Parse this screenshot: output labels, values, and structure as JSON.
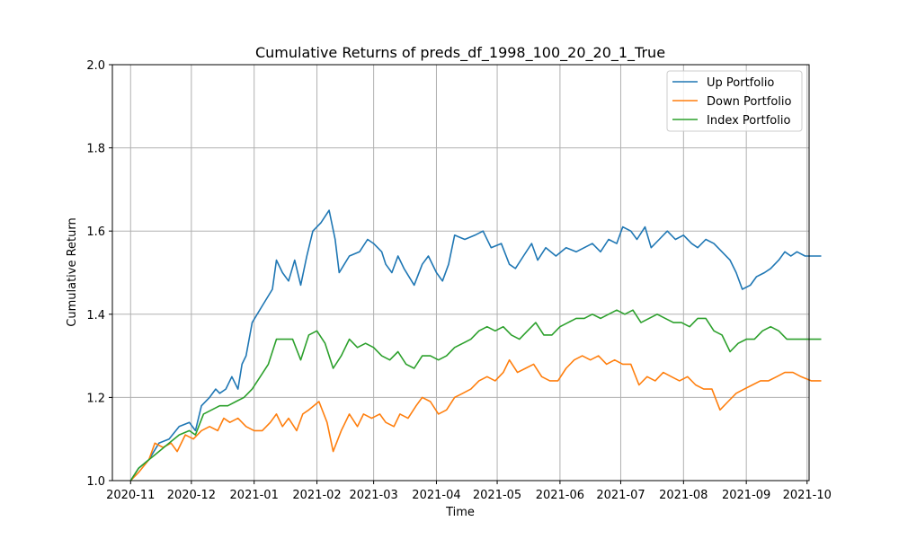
{
  "chart_data": {
    "type": "line",
    "title": "Cumulative Returns of preds_df_1998_100_20_20_1_True",
    "xlabel": "Time",
    "ylabel": "Cumulative Return",
    "ylim": [
      1.0,
      2.0
    ],
    "yticks": [
      "1.0",
      "1.2",
      "1.4",
      "1.6",
      "1.8",
      "2.0"
    ],
    "xlim": [
      "2020-10-23",
      "2021-10-02"
    ],
    "xticks": [
      "2020-11",
      "2020-12",
      "2021-01",
      "2021-02",
      "2021-03",
      "2021-04",
      "2021-05",
      "2021-06",
      "2021-07",
      "2021-08",
      "2021-09",
      "2021-10"
    ],
    "grid": true,
    "legend": "top-right",
    "series": [
      {
        "name": "Up Portfolio",
        "color": "#1f77b4",
        "points": [
          [
            "2020-11-01",
            1.0
          ],
          [
            "2020-11-05",
            1.03
          ],
          [
            "2020-11-10",
            1.05
          ],
          [
            "2020-11-15",
            1.09
          ],
          [
            "2020-11-20",
            1.1
          ],
          [
            "2020-11-25",
            1.13
          ],
          [
            "2020-11-30",
            1.14
          ],
          [
            "2020-12-03",
            1.12
          ],
          [
            "2020-12-06",
            1.18
          ],
          [
            "2020-12-10",
            1.2
          ],
          [
            "2020-12-13",
            1.22
          ],
          [
            "2020-12-15",
            1.21
          ],
          [
            "2020-12-18",
            1.22
          ],
          [
            "2020-12-21",
            1.25
          ],
          [
            "2020-12-24",
            1.22
          ],
          [
            "2020-12-26",
            1.28
          ],
          [
            "2020-12-28",
            1.3
          ],
          [
            "2020-12-31",
            1.38
          ],
          [
            "2021-01-05",
            1.42
          ],
          [
            "2021-01-10",
            1.46
          ],
          [
            "2021-01-12",
            1.53
          ],
          [
            "2021-01-15",
            1.5
          ],
          [
            "2021-01-18",
            1.48
          ],
          [
            "2021-01-21",
            1.53
          ],
          [
            "2021-01-24",
            1.47
          ],
          [
            "2021-01-27",
            1.54
          ],
          [
            "2021-01-30",
            1.6
          ],
          [
            "2021-02-03",
            1.62
          ],
          [
            "2021-02-07",
            1.65
          ],
          [
            "2021-02-10",
            1.58
          ],
          [
            "2021-02-12",
            1.5
          ],
          [
            "2021-02-17",
            1.54
          ],
          [
            "2021-02-22",
            1.55
          ],
          [
            "2021-02-26",
            1.58
          ],
          [
            "2021-03-01",
            1.57
          ],
          [
            "2021-03-05",
            1.55
          ],
          [
            "2021-03-07",
            1.52
          ],
          [
            "2021-03-10",
            1.5
          ],
          [
            "2021-03-13",
            1.54
          ],
          [
            "2021-03-16",
            1.51
          ],
          [
            "2021-03-21",
            1.47
          ],
          [
            "2021-03-25",
            1.52
          ],
          [
            "2021-03-28",
            1.54
          ],
          [
            "2021-04-01",
            1.5
          ],
          [
            "2021-04-04",
            1.48
          ],
          [
            "2021-04-07",
            1.52
          ],
          [
            "2021-04-10",
            1.59
          ],
          [
            "2021-04-15",
            1.58
          ],
          [
            "2021-04-20",
            1.59
          ],
          [
            "2021-04-24",
            1.6
          ],
          [
            "2021-04-28",
            1.56
          ],
          [
            "2021-05-03",
            1.57
          ],
          [
            "2021-05-07",
            1.52
          ],
          [
            "2021-05-10",
            1.51
          ],
          [
            "2021-05-14",
            1.54
          ],
          [
            "2021-05-18",
            1.57
          ],
          [
            "2021-05-21",
            1.53
          ],
          [
            "2021-05-25",
            1.56
          ],
          [
            "2021-05-30",
            1.54
          ],
          [
            "2021-06-04",
            1.56
          ],
          [
            "2021-06-09",
            1.55
          ],
          [
            "2021-06-13",
            1.56
          ],
          [
            "2021-06-17",
            1.57
          ],
          [
            "2021-06-21",
            1.55
          ],
          [
            "2021-06-25",
            1.58
          ],
          [
            "2021-06-29",
            1.57
          ],
          [
            "2021-07-02",
            1.61
          ],
          [
            "2021-07-06",
            1.6
          ],
          [
            "2021-07-09",
            1.58
          ],
          [
            "2021-07-13",
            1.61
          ],
          [
            "2021-07-16",
            1.56
          ],
          [
            "2021-07-20",
            1.58
          ],
          [
            "2021-07-24",
            1.6
          ],
          [
            "2021-07-28",
            1.58
          ],
          [
            "2021-08-01",
            1.59
          ],
          [
            "2021-08-05",
            1.57
          ],
          [
            "2021-08-08",
            1.56
          ],
          [
            "2021-08-12",
            1.58
          ],
          [
            "2021-08-16",
            1.57
          ],
          [
            "2021-08-20",
            1.55
          ],
          [
            "2021-08-24",
            1.53
          ],
          [
            "2021-08-27",
            1.5
          ],
          [
            "2021-08-30",
            1.46
          ],
          [
            "2021-09-03",
            1.47
          ],
          [
            "2021-09-06",
            1.49
          ],
          [
            "2021-09-10",
            1.5
          ],
          [
            "2021-09-13",
            1.51
          ],
          [
            "2021-09-17",
            1.53
          ],
          [
            "2021-09-20",
            1.55
          ],
          [
            "2021-09-23",
            1.54
          ],
          [
            "2021-09-26",
            1.55
          ],
          [
            "2021-09-30",
            1.54
          ],
          [
            "2021-10-03",
            1.54
          ],
          [
            "2021-10-08",
            1.54
          ]
        ]
      },
      {
        "name": "Down Portfolio",
        "color": "#ff7f0e",
        "points": [
          [
            "2020-11-01",
            1.0
          ],
          [
            "2020-11-05",
            1.02
          ],
          [
            "2020-11-10",
            1.05
          ],
          [
            "2020-11-13",
            1.09
          ],
          [
            "2020-11-17",
            1.08
          ],
          [
            "2020-11-21",
            1.09
          ],
          [
            "2020-11-24",
            1.07
          ],
          [
            "2020-11-28",
            1.11
          ],
          [
            "2020-12-02",
            1.1
          ],
          [
            "2020-12-06",
            1.12
          ],
          [
            "2020-12-10",
            1.13
          ],
          [
            "2020-12-14",
            1.12
          ],
          [
            "2020-12-17",
            1.15
          ],
          [
            "2020-12-20",
            1.14
          ],
          [
            "2020-12-24",
            1.15
          ],
          [
            "2020-12-28",
            1.13
          ],
          [
            "2021-01-01",
            1.12
          ],
          [
            "2021-01-05",
            1.12
          ],
          [
            "2021-01-09",
            1.14
          ],
          [
            "2021-01-12",
            1.16
          ],
          [
            "2021-01-15",
            1.13
          ],
          [
            "2021-01-18",
            1.15
          ],
          [
            "2021-01-22",
            1.12
          ],
          [
            "2021-01-25",
            1.16
          ],
          [
            "2021-01-28",
            1.17
          ],
          [
            "2021-02-02",
            1.19
          ],
          [
            "2021-02-06",
            1.14
          ],
          [
            "2021-02-09",
            1.07
          ],
          [
            "2021-02-13",
            1.12
          ],
          [
            "2021-02-17",
            1.16
          ],
          [
            "2021-02-21",
            1.13
          ],
          [
            "2021-02-24",
            1.16
          ],
          [
            "2021-02-28",
            1.15
          ],
          [
            "2021-03-04",
            1.16
          ],
          [
            "2021-03-07",
            1.14
          ],
          [
            "2021-03-11",
            1.13
          ],
          [
            "2021-03-14",
            1.16
          ],
          [
            "2021-03-18",
            1.15
          ],
          [
            "2021-03-22",
            1.18
          ],
          [
            "2021-03-25",
            1.2
          ],
          [
            "2021-03-29",
            1.19
          ],
          [
            "2021-04-02",
            1.16
          ],
          [
            "2021-04-06",
            1.17
          ],
          [
            "2021-04-10",
            1.2
          ],
          [
            "2021-04-14",
            1.21
          ],
          [
            "2021-04-18",
            1.22
          ],
          [
            "2021-04-22",
            1.24
          ],
          [
            "2021-04-26",
            1.25
          ],
          [
            "2021-04-30",
            1.24
          ],
          [
            "2021-05-04",
            1.26
          ],
          [
            "2021-05-07",
            1.29
          ],
          [
            "2021-05-11",
            1.26
          ],
          [
            "2021-05-15",
            1.27
          ],
          [
            "2021-05-19",
            1.28
          ],
          [
            "2021-05-23",
            1.25
          ],
          [
            "2021-05-27",
            1.24
          ],
          [
            "2021-05-31",
            1.24
          ],
          [
            "2021-06-04",
            1.27
          ],
          [
            "2021-06-08",
            1.29
          ],
          [
            "2021-06-12",
            1.3
          ],
          [
            "2021-06-16",
            1.29
          ],
          [
            "2021-06-20",
            1.3
          ],
          [
            "2021-06-24",
            1.28
          ],
          [
            "2021-06-28",
            1.29
          ],
          [
            "2021-07-02",
            1.28
          ],
          [
            "2021-07-06",
            1.28
          ],
          [
            "2021-07-10",
            1.23
          ],
          [
            "2021-07-14",
            1.25
          ],
          [
            "2021-07-18",
            1.24
          ],
          [
            "2021-07-22",
            1.26
          ],
          [
            "2021-07-26",
            1.25
          ],
          [
            "2021-07-30",
            1.24
          ],
          [
            "2021-08-03",
            1.25
          ],
          [
            "2021-08-07",
            1.23
          ],
          [
            "2021-08-11",
            1.22
          ],
          [
            "2021-08-15",
            1.22
          ],
          [
            "2021-08-19",
            1.17
          ],
          [
            "2021-08-23",
            1.19
          ],
          [
            "2021-08-27",
            1.21
          ],
          [
            "2021-08-31",
            1.22
          ],
          [
            "2021-09-04",
            1.23
          ],
          [
            "2021-09-08",
            1.24
          ],
          [
            "2021-09-12",
            1.24
          ],
          [
            "2021-09-16",
            1.25
          ],
          [
            "2021-09-20",
            1.26
          ],
          [
            "2021-09-24",
            1.26
          ],
          [
            "2021-09-28",
            1.25
          ],
          [
            "2021-10-03",
            1.24
          ],
          [
            "2021-10-08",
            1.24
          ]
        ]
      },
      {
        "name": "Index Portfolio",
        "color": "#2ca02c",
        "points": [
          [
            "2020-11-01",
            1.0
          ],
          [
            "2020-11-05",
            1.03
          ],
          [
            "2020-11-10",
            1.05
          ],
          [
            "2020-11-15",
            1.07
          ],
          [
            "2020-11-20",
            1.09
          ],
          [
            "2020-11-25",
            1.11
          ],
          [
            "2020-11-30",
            1.12
          ],
          [
            "2020-12-03",
            1.11
          ],
          [
            "2020-12-07",
            1.16
          ],
          [
            "2020-12-11",
            1.17
          ],
          [
            "2020-12-15",
            1.18
          ],
          [
            "2020-12-19",
            1.18
          ],
          [
            "2020-12-23",
            1.19
          ],
          [
            "2020-12-27",
            1.2
          ],
          [
            "2020-12-31",
            1.22
          ],
          [
            "2021-01-04",
            1.25
          ],
          [
            "2021-01-08",
            1.28
          ],
          [
            "2021-01-12",
            1.34
          ],
          [
            "2021-01-16",
            1.34
          ],
          [
            "2021-01-20",
            1.34
          ],
          [
            "2021-01-24",
            1.29
          ],
          [
            "2021-01-28",
            1.35
          ],
          [
            "2021-02-01",
            1.36
          ],
          [
            "2021-02-05",
            1.33
          ],
          [
            "2021-02-09",
            1.27
          ],
          [
            "2021-02-13",
            1.3
          ],
          [
            "2021-02-17",
            1.34
          ],
          [
            "2021-02-21",
            1.32
          ],
          [
            "2021-02-25",
            1.33
          ],
          [
            "2021-03-01",
            1.32
          ],
          [
            "2021-03-05",
            1.3
          ],
          [
            "2021-03-09",
            1.29
          ],
          [
            "2021-03-13",
            1.31
          ],
          [
            "2021-03-17",
            1.28
          ],
          [
            "2021-03-21",
            1.27
          ],
          [
            "2021-03-25",
            1.3
          ],
          [
            "2021-03-29",
            1.3
          ],
          [
            "2021-04-02",
            1.29
          ],
          [
            "2021-04-06",
            1.3
          ],
          [
            "2021-04-10",
            1.32
          ],
          [
            "2021-04-14",
            1.33
          ],
          [
            "2021-04-18",
            1.34
          ],
          [
            "2021-04-22",
            1.36
          ],
          [
            "2021-04-26",
            1.37
          ],
          [
            "2021-04-30",
            1.36
          ],
          [
            "2021-05-04",
            1.37
          ],
          [
            "2021-05-08",
            1.35
          ],
          [
            "2021-05-12",
            1.34
          ],
          [
            "2021-05-16",
            1.36
          ],
          [
            "2021-05-20",
            1.38
          ],
          [
            "2021-05-24",
            1.35
          ],
          [
            "2021-05-28",
            1.35
          ],
          [
            "2021-06-01",
            1.37
          ],
          [
            "2021-06-05",
            1.38
          ],
          [
            "2021-06-09",
            1.39
          ],
          [
            "2021-06-13",
            1.39
          ],
          [
            "2021-06-17",
            1.4
          ],
          [
            "2021-06-21",
            1.39
          ],
          [
            "2021-06-25",
            1.4
          ],
          [
            "2021-06-29",
            1.41
          ],
          [
            "2021-07-03",
            1.4
          ],
          [
            "2021-07-07",
            1.41
          ],
          [
            "2021-07-11",
            1.38
          ],
          [
            "2021-07-15",
            1.39
          ],
          [
            "2021-07-19",
            1.4
          ],
          [
            "2021-07-23",
            1.39
          ],
          [
            "2021-07-27",
            1.38
          ],
          [
            "2021-07-31",
            1.38
          ],
          [
            "2021-08-04",
            1.37
          ],
          [
            "2021-08-08",
            1.39
          ],
          [
            "2021-08-12",
            1.39
          ],
          [
            "2021-08-16",
            1.36
          ],
          [
            "2021-08-20",
            1.35
          ],
          [
            "2021-08-24",
            1.31
          ],
          [
            "2021-08-28",
            1.33
          ],
          [
            "2021-09-01",
            1.34
          ],
          [
            "2021-09-05",
            1.34
          ],
          [
            "2021-09-09",
            1.36
          ],
          [
            "2021-09-13",
            1.37
          ],
          [
            "2021-09-17",
            1.36
          ],
          [
            "2021-09-21",
            1.34
          ],
          [
            "2021-09-25",
            1.34
          ],
          [
            "2021-09-29",
            1.34
          ],
          [
            "2021-10-03",
            1.34
          ],
          [
            "2021-10-08",
            1.34
          ]
        ]
      }
    ]
  }
}
